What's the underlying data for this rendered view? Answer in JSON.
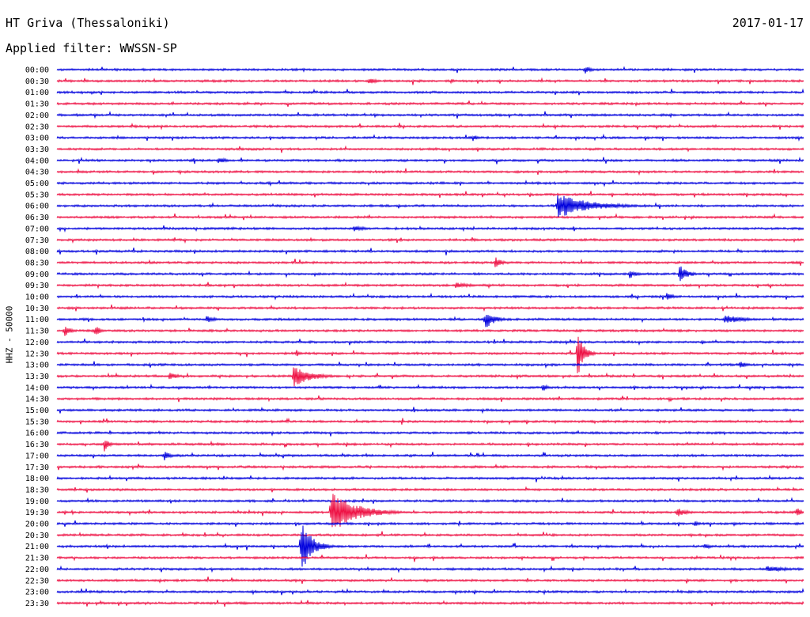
{
  "station": "HT Griva (Thessaloniki)",
  "date": "2017-01-17",
  "filter_label": "Applied filter: WWSSN-SP",
  "channel_label": "HHZ - 50000",
  "colors": {
    "trace_odd": "#0000dd",
    "trace_even": "#ee1144",
    "text": "#000000"
  },
  "chart_data": {
    "type": "line",
    "title": "HT Griva (Thessaloniki)",
    "subtitle": "Applied filter: WWSSN-SP",
    "ylabel": "HHZ - 50000",
    "row_labels": [
      "00:00",
      "00:30",
      "01:00",
      "01:30",
      "02:00",
      "02:30",
      "03:00",
      "03:30",
      "04:00",
      "04:30",
      "05:00",
      "05:30",
      "06:00",
      "06:30",
      "07:00",
      "07:30",
      "08:00",
      "08:30",
      "09:00",
      "09:30",
      "10:00",
      "10:30",
      "11:00",
      "11:30",
      "12:00",
      "12:30",
      "13:00",
      "13:30",
      "14:00",
      "14:30",
      "15:00",
      "15:30",
      "16:00",
      "16:30",
      "17:00",
      "17:30",
      "18:00",
      "18:30",
      "19:00",
      "19:30",
      "20:00",
      "20:30",
      "21:00",
      "21:30",
      "22:00",
      "22:30",
      "23:00",
      "23:30"
    ],
    "row_minutes": 30,
    "events": [
      {
        "row": "00:00",
        "minute": 21.2,
        "amplitude": 6,
        "duration": 0.3
      },
      {
        "row": "00:30",
        "minute": 12.5,
        "amplitude": 5,
        "duration": 0.4
      },
      {
        "row": "00:30",
        "minute": 15.8,
        "amplitude": 3,
        "duration": 0.3
      },
      {
        "row": "03:00",
        "minute": 16.7,
        "amplitude": 5,
        "duration": 0.2
      },
      {
        "row": "04:00",
        "minute": 6.5,
        "amplitude": 4,
        "duration": 0.5
      },
      {
        "row": "06:00",
        "minute": 20.1,
        "amplitude": 16,
        "duration": 2.0
      },
      {
        "row": "07:00",
        "minute": 11.9,
        "amplitude": 4,
        "duration": 0.8
      },
      {
        "row": "08:30",
        "minute": 17.6,
        "amplitude": 8,
        "duration": 0.3
      },
      {
        "row": "09:00",
        "minute": 25.0,
        "amplitude": 13,
        "duration": 0.4
      },
      {
        "row": "09:00",
        "minute": 23.0,
        "amplitude": 6,
        "duration": 0.4
      },
      {
        "row": "09:30",
        "minute": 16.0,
        "amplitude": 4,
        "duration": 1.0
      },
      {
        "row": "10:00",
        "minute": 24.5,
        "amplitude": 6,
        "duration": 0.3
      },
      {
        "row": "11:00",
        "minute": 17.2,
        "amplitude": 13,
        "duration": 0.5
      },
      {
        "row": "11:00",
        "minute": 26.8,
        "amplitude": 6,
        "duration": 1.2
      },
      {
        "row": "11:00",
        "minute": 6.0,
        "amplitude": 5,
        "duration": 0.5
      },
      {
        "row": "11:30",
        "minute": 0.3,
        "amplitude": 8,
        "duration": 0.3
      },
      {
        "row": "11:30",
        "minute": 1.5,
        "amplitude": 8,
        "duration": 0.3
      },
      {
        "row": "12:30",
        "minute": 20.9,
        "amplitude": 34,
        "duration": 0.3
      },
      {
        "row": "12:30",
        "minute": 9.6,
        "amplitude": 5,
        "duration": 0.2
      },
      {
        "row": "13:00",
        "minute": 27.4,
        "amplitude": 5,
        "duration": 0.4
      },
      {
        "row": "13:30",
        "minute": 9.5,
        "amplitude": 15,
        "duration": 1.0
      },
      {
        "row": "13:30",
        "minute": 4.5,
        "amplitude": 5,
        "duration": 0.5
      },
      {
        "row": "14:00",
        "minute": 19.5,
        "amplitude": 7,
        "duration": 0.2
      },
      {
        "row": "16:30",
        "minute": 1.9,
        "amplitude": 10,
        "duration": 0.2
      },
      {
        "row": "17:00",
        "minute": 4.3,
        "amplitude": 7,
        "duration": 0.3
      },
      {
        "row": "19:30",
        "minute": 11.0,
        "amplitude": 28,
        "duration": 1.5
      },
      {
        "row": "19:30",
        "minute": 24.9,
        "amplitude": 6,
        "duration": 0.6
      },
      {
        "row": "19:30",
        "minute": 29.7,
        "amplitude": 8,
        "duration": 0.2
      },
      {
        "row": "20:00",
        "minute": 25.6,
        "amplitude": 4,
        "duration": 0.3
      },
      {
        "row": "21:00",
        "minute": 9.8,
        "amplitude": 35,
        "duration": 0.6
      },
      {
        "row": "21:00",
        "minute": 26.0,
        "amplitude": 4,
        "duration": 0.4
      },
      {
        "row": "22:00",
        "minute": 28.5,
        "amplitude": 4,
        "duration": 1.5
      }
    ]
  }
}
